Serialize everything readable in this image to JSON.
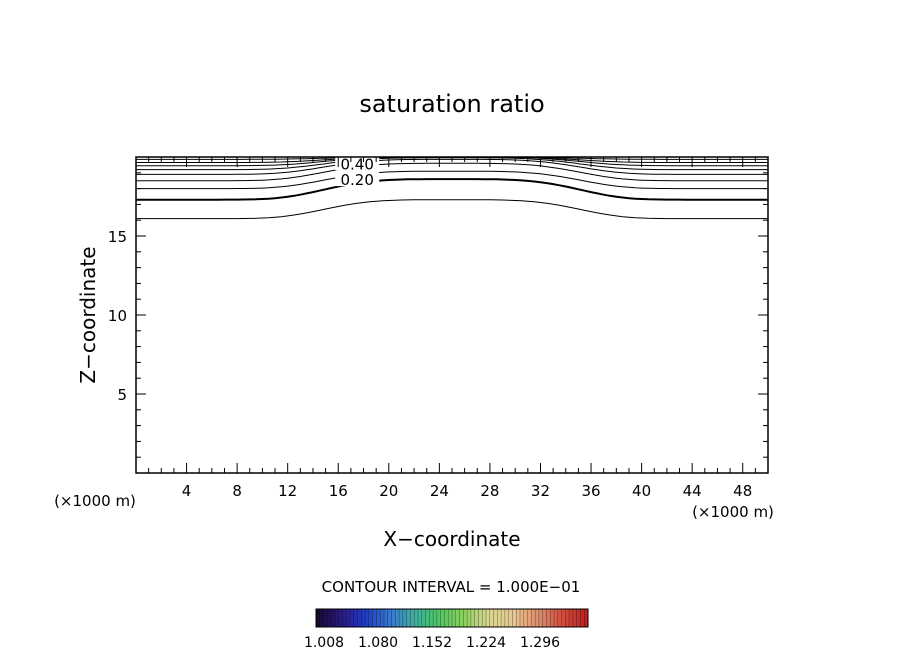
{
  "chart_data": {
    "type": "contour",
    "title": "saturation ratio",
    "xlabel": "X−coordinate",
    "ylabel": "Z−coordinate",
    "x_unit_label": "(×1000 m)",
    "y_unit_label": "(×1000 m)",
    "xlim": [
      0,
      50
    ],
    "ylim": [
      0,
      20
    ],
    "x_ticks": [
      4,
      8,
      12,
      16,
      20,
      24,
      28,
      32,
      36,
      40,
      44,
      48
    ],
    "y_ticks": [
      5,
      10,
      15
    ],
    "contour_interval_text": "CONTOUR INTERVAL = 1.000E−01",
    "contour_labels": [
      {
        "text": "0.40",
        "x": 17.5,
        "z": 19.6
      },
      {
        "text": "0.20",
        "x": 17.5,
        "z": 18.6
      }
    ],
    "contours": [
      {
        "level": 0.1,
        "bold": false,
        "base_z": 16.1,
        "crest_z": 17.3
      },
      {
        "level": 0.2,
        "bold": true,
        "base_z": 17.3,
        "crest_z": 18.6
      },
      {
        "level": 0.3,
        "bold": false,
        "base_z": 18.0,
        "crest_z": 19.1
      },
      {
        "level": 0.4,
        "bold": false,
        "base_z": 18.5,
        "crest_z": 19.6
      },
      {
        "level": 0.5,
        "bold": false,
        "base_z": 18.9,
        "crest_z": 19.85
      },
      {
        "level": 0.6,
        "bold": false,
        "base_z": 19.2,
        "crest_z": 19.95
      },
      {
        "level": 0.7,
        "bold": false,
        "base_z": 19.45,
        "crest_z": 20.0
      },
      {
        "level": 0.8,
        "bold": false,
        "base_z": 19.65,
        "crest_z": 20.0
      },
      {
        "level": 0.9,
        "bold": false,
        "base_z": 19.85,
        "crest_z": 20.0
      }
    ],
    "colorbar": {
      "tick_labels": [
        "1.008",
        "1.080",
        "1.152",
        "1.224",
        "1.296"
      ],
      "colors": [
        "#1a0a2e",
        "#2a1a8a",
        "#2040c8",
        "#3a7ad0",
        "#40b0a0",
        "#50c860",
        "#90d060",
        "#d8d890",
        "#e8c890",
        "#e09070",
        "#d05040",
        "#c02020"
      ]
    }
  }
}
